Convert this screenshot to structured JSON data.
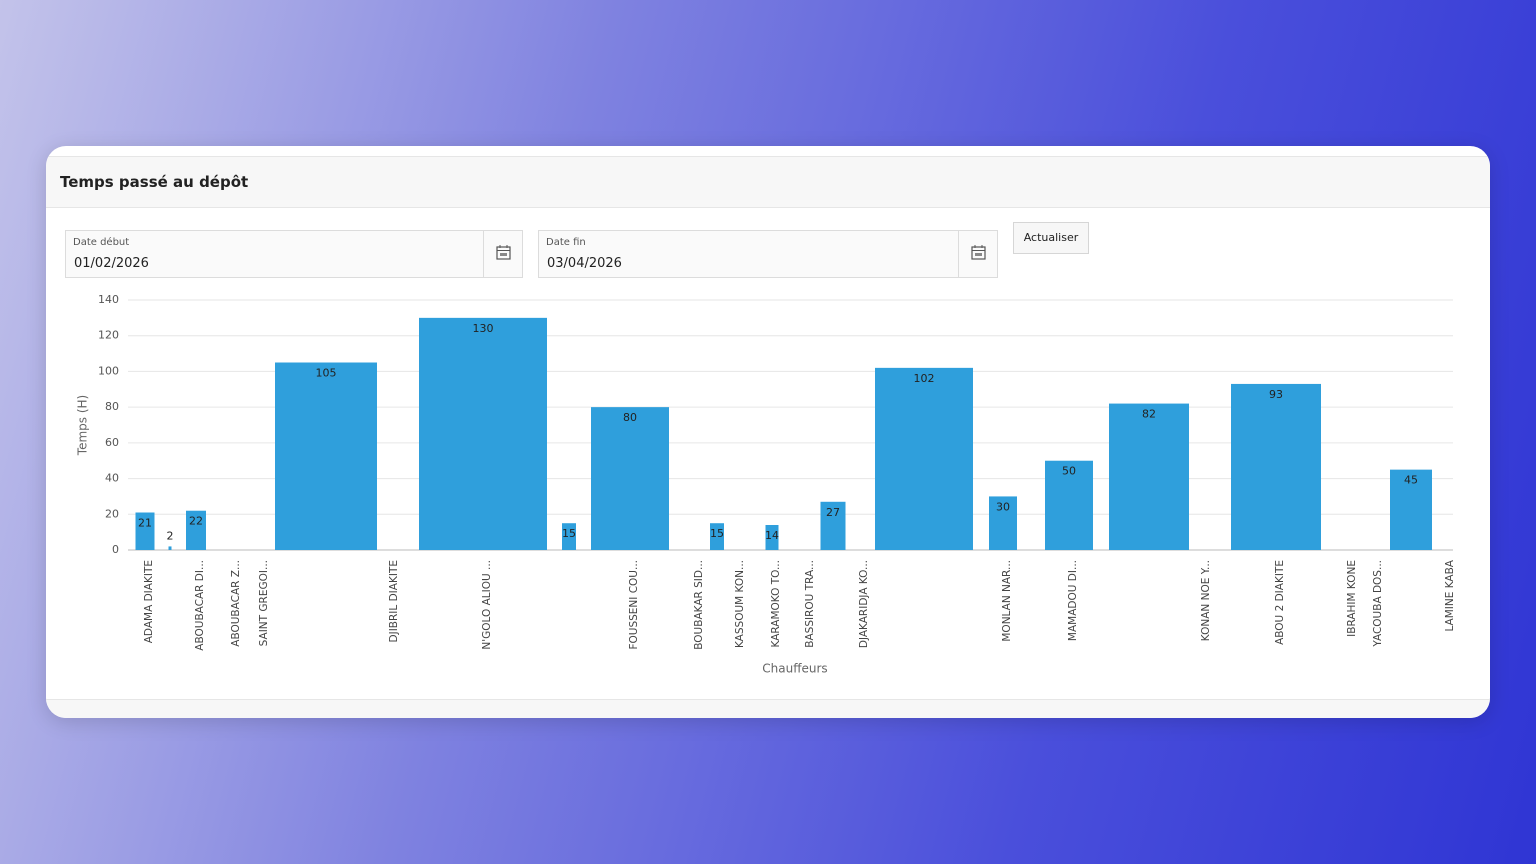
{
  "header": {
    "title": "Temps passé au dépôt"
  },
  "form": {
    "start_label": "Date début",
    "start_value": "01/02/2026",
    "end_label": "Date fin",
    "end_value": "03/04/2026",
    "button": "Actualiser"
  },
  "chart_data": {
    "type": "bar",
    "color": "#2f9fdc",
    "x_label": "Chauffeurs",
    "y_label": "Temps (H)",
    "categories": [
      "ADAMA DIAKITE",
      null,
      "ABOUBACAR DI...",
      "ABOUBACAR Z...",
      "SAINT GREGOI...",
      null,
      "DJIBRIL DIAKITE",
      "N'GOLO ALIOU ...",
      null,
      "FOUSSENI COU...",
      "BOUBAKAR SID...",
      null,
      "KASSOUM KON...",
      "KARAMOKO TO...",
      "BASSIROU TRA...",
      null,
      "DJAKARIDJA KO...",
      null,
      "MONLAN NAR...",
      "MAMADOU DI...",
      null,
      "KONAN NOE Y...",
      "ABOU 2 DIAKITE",
      "IBRAHIM KONE",
      "YACOUBA DOS...",
      null,
      "LAMINE KABA"
    ],
    "values": [
      21,
      2,
      22,
      null,
      null,
      105,
      null,
      130,
      15,
      80,
      null,
      15,
      null,
      14,
      null,
      27,
      null,
      102,
      30,
      50,
      82,
      null,
      93,
      null,
      null,
      45,
      null
    ],
    "ylim": [
      0,
      140
    ],
    "yticks": [
      0,
      20,
      40,
      60,
      80,
      100,
      120,
      140
    ],
    "grid": true
  }
}
